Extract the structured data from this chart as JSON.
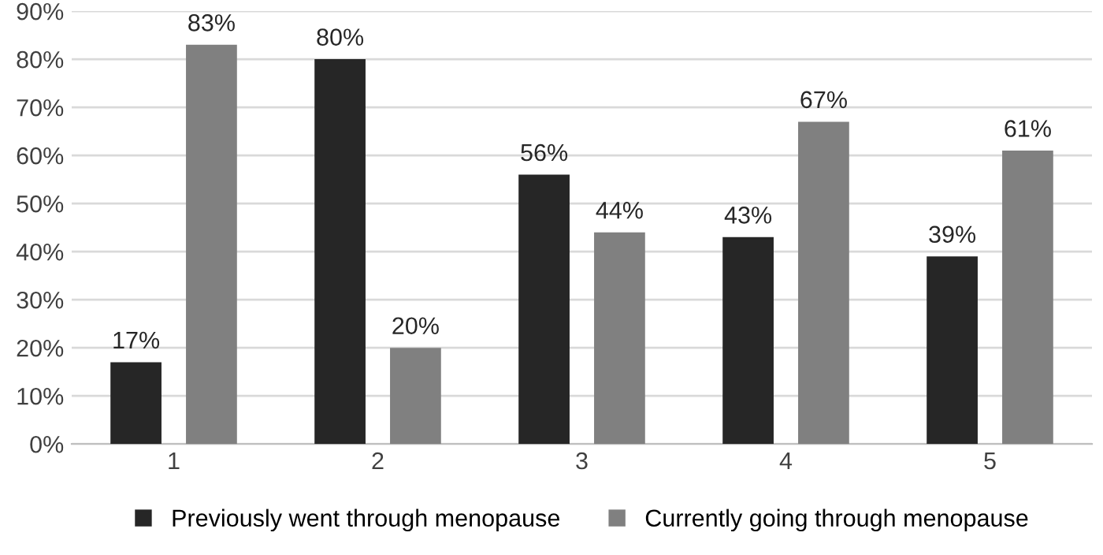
{
  "chart_data": {
    "type": "bar",
    "categories": [
      "1",
      "2",
      "3",
      "4",
      "5"
    ],
    "series": [
      {
        "name": "Previously went through menopause",
        "color": "#262626",
        "values": [
          17,
          80,
          56,
          43,
          39
        ],
        "value_labels": [
          "17%",
          "80%",
          "56%",
          "43%",
          "39%"
        ]
      },
      {
        "name": "Currently going through menopause",
        "color": "#808080",
        "values": [
          83,
          20,
          44,
          67,
          61
        ],
        "value_labels": [
          "83%",
          "20%",
          "44%",
          "67%",
          "61%"
        ]
      }
    ],
    "ylim": [
      0,
      90
    ],
    "yticks": [
      {
        "value": 0,
        "label": "0%"
      },
      {
        "value": 10,
        "label": "10%"
      },
      {
        "value": 20,
        "label": "20%"
      },
      {
        "value": 30,
        "label": "30%"
      },
      {
        "value": 40,
        "label": "40%"
      },
      {
        "value": 50,
        "label": "50%"
      },
      {
        "value": 60,
        "label": "60%"
      },
      {
        "value": 70,
        "label": "70%"
      },
      {
        "value": 80,
        "label": "80%"
      },
      {
        "value": 90,
        "label": "90%"
      }
    ],
    "grid": "y",
    "legend": "bottom"
  }
}
